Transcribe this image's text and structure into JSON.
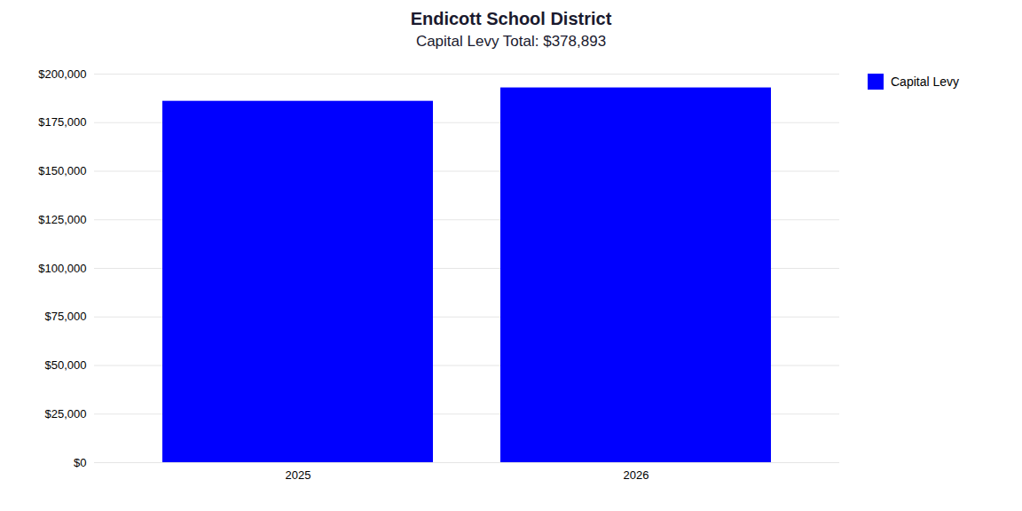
{
  "chart_data": {
    "type": "bar",
    "title": "Endicott School District",
    "subtitle": "Capital Levy Total: $378,893",
    "categories": [
      "2025",
      "2026"
    ],
    "series": [
      {
        "name": "Capital Levy",
        "color": "#0000FF",
        "values": [
          186000,
          192893
        ]
      }
    ],
    "ylim": [
      0,
      200000
    ],
    "yticks": [
      {
        "value": 0,
        "label": "$0"
      },
      {
        "value": 25000,
        "label": "$25,000"
      },
      {
        "value": 50000,
        "label": "$50,000"
      },
      {
        "value": 75000,
        "label": "$75,000"
      },
      {
        "value": 100000,
        "label": "$100,000"
      },
      {
        "value": 125000,
        "label": "$125,000"
      },
      {
        "value": 150000,
        "label": "$150,000"
      },
      {
        "value": 175000,
        "label": "$175,000"
      },
      {
        "value": 200000,
        "label": "$200,000"
      }
    ],
    "grid": true,
    "legend": "right"
  }
}
